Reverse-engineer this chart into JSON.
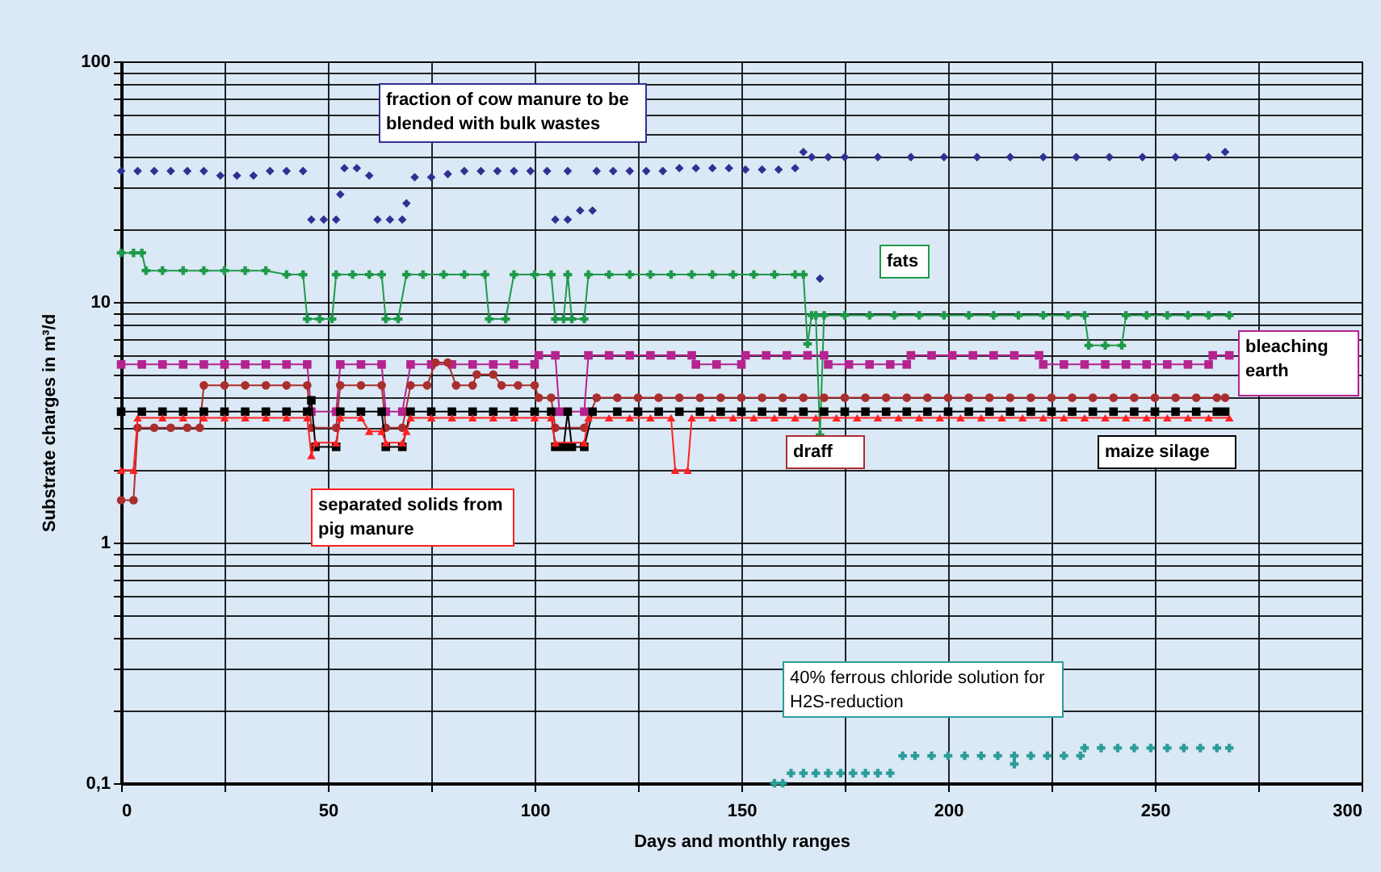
{
  "chart_data": {
    "type": "line",
    "xlabel": "Days and monthly ranges",
    "ylabel": "Substrate charges in m³/d",
    "xlim": [
      0,
      300
    ],
    "ylim": [
      0.1,
      100
    ],
    "log": "y",
    "grid": true,
    "xticks": [
      0,
      {
        "value": 25,
        "label": null
      },
      50,
      {
        "value": 75,
        "label": null
      },
      100,
      {
        "value": 125,
        "label": null
      },
      150,
      {
        "value": 175,
        "label": null
      },
      200,
      {
        "value": 225,
        "label": null
      },
      250,
      {
        "value": 275,
        "label": null
      },
      300
    ],
    "yticks": [
      {
        "value": 0.1,
        "label": "0,1"
      },
      {
        "value": 0.2,
        "label": null
      },
      {
        "value": 0.3,
        "label": null
      },
      {
        "value": 0.4,
        "label": null
      },
      {
        "value": 0.5,
        "label": null
      },
      {
        "value": 0.6,
        "label": null
      },
      {
        "value": 0.7,
        "label": null
      },
      {
        "value": 0.8,
        "label": null
      },
      {
        "value": 0.9,
        "label": null
      },
      1,
      {
        "value": 2,
        "label": null
      },
      {
        "value": 3,
        "label": null
      },
      {
        "value": 4,
        "label": null
      },
      {
        "value": 5,
        "label": null
      },
      {
        "value": 6,
        "label": null
      },
      {
        "value": 7,
        "label": null
      },
      {
        "value": 8,
        "label": null
      },
      {
        "value": 9,
        "label": null
      },
      10,
      {
        "value": 20,
        "label": null
      },
      {
        "value": 30,
        "label": null
      },
      {
        "value": 40,
        "label": null
      },
      {
        "value": 50,
        "label": null
      },
      {
        "value": 60,
        "label": null
      },
      {
        "value": 70,
        "label": null
      },
      {
        "value": 80,
        "label": null
      },
      {
        "value": 90,
        "label": null
      },
      100
    ],
    "series": [
      {
        "name": "fraction of cow manure to be blended with bulk wastes",
        "type": "scatter",
        "marker": "diamond",
        "color": "#2e3192",
        "x": [
          0,
          4,
          8,
          12,
          16,
          20,
          24,
          28,
          32,
          36,
          40,
          44,
          46,
          49,
          52,
          53,
          54,
          57,
          60,
          62,
          65,
          68,
          69,
          71,
          75,
          79,
          83,
          87,
          91,
          95,
          99,
          103,
          105,
          108,
          108,
          111,
          114,
          115,
          119,
          123,
          127,
          131,
          135,
          139,
          143,
          147,
          151,
          155,
          159,
          163,
          165,
          167,
          169,
          171,
          175,
          183,
          191,
          199,
          207,
          215,
          223,
          231,
          239,
          247,
          255,
          263,
          267
        ],
        "values": [
          35,
          35,
          35,
          35,
          35,
          35,
          33.5,
          33.5,
          33.5,
          35,
          35,
          35,
          22,
          22,
          22,
          28,
          36,
          36,
          33.5,
          22,
          22,
          22,
          25.7,
          33,
          33,
          34,
          35,
          35,
          35,
          35,
          35,
          35,
          22,
          22,
          35,
          24,
          24,
          35,
          35,
          35,
          35,
          35,
          36,
          36,
          36,
          36,
          35.5,
          35.5,
          35.5,
          36,
          42,
          40,
          12.5,
          40,
          40,
          40,
          40,
          40,
          40,
          40,
          40,
          40,
          40,
          40,
          40,
          40,
          42
        ]
      },
      {
        "name": "fats",
        "type": "line",
        "marker": "cross",
        "color": "#1f9a4a",
        "x": [
          0,
          3,
          5,
          6,
          10,
          15,
          20,
          25,
          30,
          35,
          40,
          44,
          45,
          48,
          51,
          52,
          56,
          60,
          63,
          64,
          67,
          69,
          73,
          78,
          83,
          88,
          89,
          93,
          95,
          100,
          104,
          105,
          107,
          108,
          109,
          112,
          113,
          118,
          123,
          128,
          133,
          138,
          143,
          148,
          153,
          158,
          163,
          165,
          166,
          167,
          168,
          169,
          170,
          175,
          181,
          187,
          193,
          199,
          205,
          211,
          217,
          223,
          229,
          233,
          234,
          238,
          242,
          243,
          248,
          253,
          258,
          263,
          268
        ],
        "values": [
          16,
          16,
          16,
          13.5,
          13.5,
          13.5,
          13.5,
          13.5,
          13.5,
          13.5,
          13,
          13,
          8.5,
          8.5,
          8.5,
          13,
          13,
          13,
          13,
          8.5,
          8.5,
          13,
          13,
          13,
          13,
          13,
          8.5,
          8.5,
          13,
          13,
          13,
          8.5,
          8.5,
          13,
          8.5,
          8.5,
          13,
          13,
          13,
          13,
          13,
          13,
          13,
          13,
          13,
          13,
          13,
          13,
          6.7,
          8.8,
          8.8,
          2.8,
          8.8,
          8.8,
          8.8,
          8.8,
          8.8,
          8.8,
          8.8,
          8.8,
          8.8,
          8.8,
          8.8,
          8.8,
          6.6,
          6.6,
          6.6,
          8.8,
          8.8,
          8.8,
          8.8,
          8.8,
          8.8
        ]
      },
      {
        "name": "bleaching earth",
        "type": "line",
        "marker": "square",
        "color": "#b5238f",
        "x": [
          0,
          5,
          10,
          15,
          20,
          25,
          30,
          35,
          40,
          45,
          46,
          52,
          53,
          58,
          63,
          64,
          68,
          70,
          75,
          80,
          85,
          90,
          95,
          100,
          101,
          105,
          106,
          112,
          113,
          118,
          123,
          128,
          133,
          138,
          139,
          144,
          150,
          151,
          156,
          161,
          166,
          170,
          171,
          176,
          181,
          186,
          190,
          191,
          196,
          201,
          206,
          211,
          216,
          222,
          223,
          228,
          233,
          238,
          243,
          248,
          253,
          258,
          263,
          264,
          268
        ],
        "values": [
          5.5,
          5.5,
          5.5,
          5.5,
          5.5,
          5.5,
          5.5,
          5.5,
          5.5,
          5.5,
          3.5,
          3.5,
          5.5,
          5.5,
          5.5,
          3.5,
          3.5,
          5.5,
          5.5,
          5.5,
          5.5,
          5.5,
          5.5,
          5.5,
          6,
          6,
          3.5,
          3.5,
          6,
          6,
          6,
          6,
          6,
          6,
          5.5,
          5.5,
          5.5,
          6,
          6,
          6,
          6,
          6,
          5.5,
          5.5,
          5.5,
          5.5,
          5.5,
          6,
          6,
          6,
          6,
          6,
          6,
          6,
          5.5,
          5.5,
          5.5,
          5.5,
          5.5,
          5.5,
          5.5,
          5.5,
          5.5,
          6,
          6
        ]
      },
      {
        "name": "draff",
        "type": "line",
        "marker": "circle",
        "color": "#aa2e2e",
        "x": [
          0,
          3,
          4,
          8,
          12,
          16,
          19,
          20,
          25,
          30,
          35,
          40,
          45,
          46,
          52,
          53,
          58,
          63,
          64,
          68,
          70,
          74,
          76,
          79,
          81,
          85,
          86,
          90,
          92,
          96,
          100,
          101,
          104,
          105,
          112,
          115,
          120,
          125,
          130,
          135,
          140,
          145,
          150,
          155,
          160,
          165,
          170,
          175,
          180,
          185,
          190,
          195,
          200,
          205,
          210,
          215,
          220,
          225,
          230,
          235,
          240,
          245,
          250,
          255,
          260,
          265,
          267
        ],
        "values": [
          1.5,
          1.5,
          3,
          3,
          3,
          3,
          3,
          4.5,
          4.5,
          4.5,
          4.5,
          4.5,
          4.5,
          3,
          3,
          4.5,
          4.5,
          4.5,
          3,
          3,
          4.5,
          4.5,
          5.6,
          5.6,
          4.5,
          4.5,
          5,
          5,
          4.5,
          4.5,
          4.5,
          4,
          4,
          3,
          3,
          4,
          4,
          4,
          4,
          4,
          4,
          4,
          4,
          4,
          4,
          4,
          4,
          4,
          4,
          4,
          4,
          4,
          4,
          4,
          4,
          4,
          4,
          4,
          4,
          4,
          4,
          4,
          4,
          4,
          4,
          4,
          4
        ]
      },
      {
        "name": "maize silage",
        "type": "line",
        "marker": "square",
        "color": "#000000",
        "x": [
          0,
          5,
          10,
          15,
          20,
          25,
          30,
          35,
          40,
          45,
          46,
          47,
          52,
          53,
          58,
          63,
          64,
          68,
          70,
          75,
          80,
          85,
          90,
          95,
          100,
          104,
          105,
          107,
          108,
          109,
          112,
          114,
          120,
          125,
          130,
          135,
          140,
          145,
          150,
          155,
          160,
          165,
          170,
          175,
          180,
          185,
          190,
          195,
          200,
          205,
          210,
          215,
          220,
          225,
          230,
          235,
          240,
          245,
          250,
          255,
          260,
          265,
          267
        ],
        "values": [
          3.5,
          3.5,
          3.5,
          3.5,
          3.5,
          3.5,
          3.5,
          3.5,
          3.5,
          3.5,
          3.9,
          2.5,
          2.5,
          3.5,
          3.5,
          3.5,
          2.5,
          2.5,
          3.5,
          3.5,
          3.5,
          3.5,
          3.5,
          3.5,
          3.5,
          3.5,
          2.5,
          2.5,
          3.5,
          2.5,
          2.5,
          3.5,
          3.5,
          3.5,
          3.5,
          3.5,
          3.5,
          3.5,
          3.5,
          3.5,
          3.5,
          3.5,
          3.5,
          3.5,
          3.5,
          3.5,
          3.5,
          3.5,
          3.5,
          3.5,
          3.5,
          3.5,
          3.5,
          3.5,
          3.5,
          3.5,
          3.5,
          3.5,
          3.5,
          3.5,
          3.5,
          3.5,
          3.5
        ]
      },
      {
        "name": "separated solids from pig manure",
        "type": "line",
        "marker": "triangle",
        "color": "#ff2020",
        "x": [
          0,
          3,
          4,
          10,
          15,
          20,
          25,
          30,
          35,
          40,
          45,
          46,
          47,
          52,
          53,
          58,
          60,
          63,
          64,
          68,
          69,
          70,
          75,
          80,
          85,
          90,
          95,
          100,
          104,
          105,
          112,
          113,
          118,
          123,
          128,
          133,
          134,
          137,
          138,
          143,
          148,
          153,
          158,
          163,
          168,
          173,
          178,
          183,
          188,
          193,
          198,
          203,
          208,
          213,
          218,
          223,
          228,
          233,
          238,
          243,
          248,
          253,
          258,
          263,
          268
        ],
        "values": [
          2,
          2,
          3.3,
          3.3,
          3.3,
          3.3,
          3.3,
          3.3,
          3.3,
          3.3,
          3.3,
          2.3,
          2.6,
          2.6,
          3.3,
          3.3,
          2.9,
          2.9,
          2.6,
          2.6,
          2.9,
          3.3,
          3.3,
          3.3,
          3.3,
          3.3,
          3.3,
          3.3,
          3.3,
          2.6,
          2.6,
          3.3,
          3.3,
          3.3,
          3.3,
          3.3,
          2,
          2,
          3.3,
          3.3,
          3.3,
          3.3,
          3.3,
          3.3,
          3.3,
          3.3,
          3.3,
          3.3,
          3.3,
          3.3,
          3.3,
          3.3,
          3.3,
          3.3,
          3.3,
          3.3,
          3.3,
          3.3,
          3.3,
          3.3,
          3.3,
          3.3,
          3.3,
          3.3,
          3.3
        ]
      },
      {
        "name": "40% ferrous chloride solution for H2S-reduction",
        "type": "scatter",
        "marker": "cross",
        "color": "#2a9d9a",
        "x": [
          158,
          160,
          162,
          165,
          168,
          171,
          174,
          177,
          180,
          183,
          186,
          189,
          192,
          196,
          200,
          204,
          208,
          212,
          216,
          216,
          220,
          224,
          228,
          232,
          233,
          237,
          241,
          245,
          249,
          253,
          257,
          261,
          265,
          268
        ],
        "values": [
          0.1,
          0.1,
          0.11,
          0.11,
          0.11,
          0.11,
          0.11,
          0.11,
          0.11,
          0.11,
          0.11,
          0.13,
          0.13,
          0.13,
          0.13,
          0.13,
          0.13,
          0.13,
          0.13,
          0.12,
          0.13,
          0.13,
          0.13,
          0.13,
          0.14,
          0.14,
          0.14,
          0.14,
          0.14,
          0.14,
          0.14,
          0.14,
          0.14,
          0.14
        ]
      }
    ]
  }
}
